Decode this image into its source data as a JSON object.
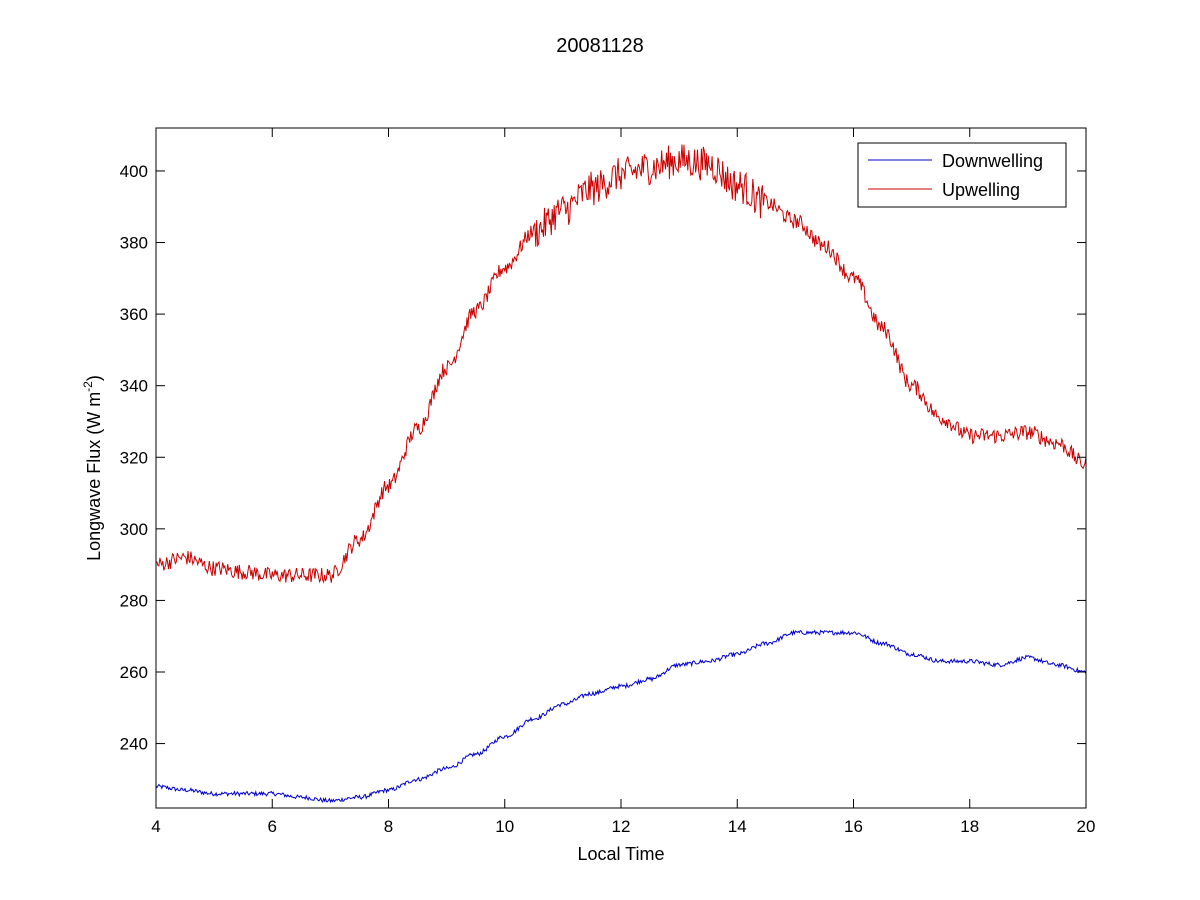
{
  "chart_data": {
    "type": "line",
    "title": "20081128",
    "xlabel": "Local Time",
    "ylabel": "Longwave Flux (W m",
    "ylabel_superscript": "-2",
    "ylabel_suffix": ")",
    "xlim": [
      4,
      20
    ],
    "ylim": [
      222,
      412
    ],
    "xticks": [
      4,
      6,
      8,
      10,
      12,
      14,
      16,
      18,
      20
    ],
    "yticks": [
      240,
      260,
      280,
      300,
      320,
      340,
      360,
      380,
      400
    ],
    "grid": false,
    "legend_position": "top-right",
    "series": [
      {
        "name": "Downwelling",
        "color": "#0000cc",
        "noise": 0.6,
        "x": [
          4.0,
          4.5,
          5.0,
          5.5,
          6.0,
          6.5,
          7.0,
          7.5,
          8.0,
          8.5,
          9.0,
          9.5,
          10.0,
          10.5,
          11.0,
          11.5,
          12.0,
          12.5,
          13.0,
          13.5,
          14.0,
          14.5,
          15.0,
          15.5,
          16.0,
          16.5,
          17.0,
          17.5,
          18.0,
          18.5,
          19.0,
          19.5,
          20.0
        ],
        "y": [
          228,
          227,
          226,
          226,
          226,
          225,
          224,
          225,
          227,
          230,
          233,
          237,
          242,
          247,
          251,
          254,
          256,
          258,
          262,
          263,
          265,
          268,
          271,
          271,
          271,
          268,
          265,
          263,
          263,
          262,
          264,
          262,
          260
        ]
      },
      {
        "name": "Upwelling",
        "color": "#cc0000",
        "noise": 2.2,
        "x": [
          4.0,
          4.5,
          5.0,
          5.5,
          6.0,
          6.5,
          7.0,
          7.5,
          8.0,
          8.5,
          9.0,
          9.5,
          10.0,
          10.5,
          11.0,
          11.5,
          12.0,
          12.5,
          13.0,
          13.5,
          14.0,
          14.5,
          15.0,
          15.5,
          16.0,
          16.5,
          17.0,
          17.5,
          18.0,
          18.5,
          19.0,
          19.5,
          20.0
        ],
        "y": [
          290,
          292,
          289,
          288,
          287,
          287,
          287,
          297,
          312,
          328,
          345,
          361,
          373,
          383,
          389,
          395,
          399,
          401,
          403,
          402,
          396,
          391,
          386,
          379,
          370,
          356,
          340,
          331,
          326,
          326,
          327,
          324,
          318
        ]
      }
    ]
  }
}
